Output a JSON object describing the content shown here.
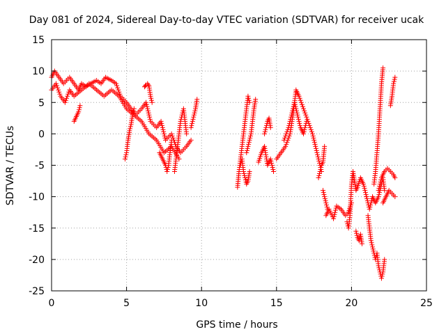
{
  "chart_data": {
    "type": "scatter",
    "title": "Day 081 of 2024, Sidereal Day-to-day VTEC variation (SDTVAR) for receiver ucak",
    "xlabel": "GPS time / hours",
    "ylabel": "SDTVAR / TECUs",
    "xlim": [
      0,
      25
    ],
    "ylim": [
      -25,
      15
    ],
    "x_ticks": [
      0,
      5,
      10,
      15,
      20,
      25
    ],
    "y_ticks": [
      -25,
      -20,
      -15,
      -10,
      -5,
      0,
      5,
      10,
      15
    ],
    "grid": true,
    "marker": "+",
    "series_color": "#ff0000",
    "series": [
      {
        "name": "SDTVAR",
        "segments": [
          {
            "x": [
              0.0,
              0.2,
              0.5,
              0.8,
              1.0,
              1.2,
              1.5,
              1.8,
              2.0,
              2.3,
              2.6,
              3.0,
              3.3,
              3.6,
              4.0,
              4.3,
              4.6,
              5.0,
              5.3,
              5.6,
              6.0,
              6.3,
              6.6,
              7.0,
              7.3,
              7.6,
              8.0,
              8.3,
              8.6,
              9.0,
              9.3
            ],
            "y": [
              9,
              10,
              9,
              8,
              8.5,
              9,
              8,
              7,
              8,
              7.5,
              8,
              8.5,
              8,
              9,
              8.5,
              8,
              6,
              5,
              4,
              3,
              4,
              5,
              2,
              1,
              2,
              -1,
              0,
              -2,
              -3,
              -2,
              -1
            ]
          },
          {
            "x": [
              0.0,
              0.3,
              0.6,
              0.9,
              1.2,
              1.5,
              2.0,
              2.5,
              3.0,
              3.5,
              4.0,
              4.5,
              5.0,
              5.5,
              6.0,
              6.5,
              7.0,
              7.5,
              8.0,
              8.5
            ],
            "y": [
              7,
              8,
              6,
              5,
              7,
              6,
              7,
              8,
              7,
              6,
              7,
              6,
              4,
              3,
              2,
              0,
              -1,
              -3,
              -2,
              -4
            ]
          },
          {
            "x": [
              1.5,
              1.6,
              1.7,
              1.8,
              1.9
            ],
            "y": [
              2,
              2.5,
              3,
              3.5,
              4.5
            ]
          },
          {
            "x": [
              4.9,
              5.0,
              5.1,
              5.2,
              5.3,
              5.4,
              5.5
            ],
            "y": [
              -4,
              -3,
              -1,
              0.5,
              1.5,
              3,
              4
            ]
          },
          {
            "x": [
              6.2,
              6.3,
              6.4,
              6.5,
              6.6,
              6.7
            ],
            "y": [
              7.5,
              7.8,
              8,
              7.6,
              6,
              5
            ]
          },
          {
            "x": [
              7.2,
              7.4,
              7.6,
              7.7,
              7.8,
              7.9,
              8.0
            ],
            "y": [
              -3,
              -4,
              -5,
              -6,
              -5,
              -3,
              -1
            ]
          },
          {
            "x": [
              8.2,
              8.3,
              8.4,
              8.5,
              8.6,
              8.7,
              8.8,
              8.9,
              9.0
            ],
            "y": [
              -6,
              -4,
              -2,
              0,
              2,
              3,
              4,
              2,
              0
            ]
          },
          {
            "x": [
              9.3,
              9.4,
              9.5,
              9.6,
              9.7
            ],
            "y": [
              1,
              2,
              3,
              4,
              5.5
            ]
          },
          {
            "x": [
              12.4,
              12.5,
              12.6,
              12.7,
              12.8,
              12.9,
              13.0,
              13.1,
              13.2
            ],
            "y": [
              -8.5,
              -6,
              -4,
              -2,
              0,
              2,
              4,
              6,
              5
            ]
          },
          {
            "x": [
              12.6,
              12.7,
              12.8,
              12.9,
              13.0,
              13.1,
              13.2
            ],
            "y": [
              -5,
              -4,
              -6,
              -7,
              -8,
              -7.5,
              -6
            ]
          },
          {
            "x": [
              13.0,
              13.1,
              13.2,
              13.3,
              13.4,
              13.5,
              13.6
            ],
            "y": [
              -3,
              -2,
              -1,
              0,
              2,
              4,
              5.5
            ]
          },
          {
            "x": [
              13.8,
              14.0,
              14.2,
              14.4,
              14.6,
              14.8
            ],
            "y": [
              -4.5,
              -3,
              -2,
              -5,
              -4,
              -6
            ]
          },
          {
            "x": [
              14.2,
              14.3,
              14.4,
              14.5,
              14.6
            ],
            "y": [
              0,
              1,
              2,
              2.5,
              1
            ]
          },
          {
            "x": [
              15.0,
              15.3,
              15.6,
              15.9,
              16.1,
              16.3,
              16.5,
              16.8,
              17.1,
              17.4,
              17.7,
              18.0
            ],
            "y": [
              -4,
              -3,
              -2,
              0,
              3,
              7,
              6,
              4,
              2,
              0,
              -3,
              -6
            ]
          },
          {
            "x": [
              15.5,
              15.8,
              16.0,
              16.2,
              16.4,
              16.6,
              16.8,
              17.0
            ],
            "y": [
              -1,
              1,
              3,
              5,
              3,
              1,
              0,
              2
            ]
          },
          {
            "x": [
              17.8,
              17.9,
              18.0,
              18.1,
              18.2
            ],
            "y": [
              -7,
              -6,
              -5,
              -4.5,
              -2
            ]
          },
          {
            "x": [
              18.3,
              18.5,
              18.8,
              19.0,
              19.3,
              19.6,
              19.8,
              20.0
            ],
            "y": [
              -13,
              -12,
              -13.5,
              -11.5,
              -12,
              -13,
              -12.5,
              -11
            ]
          },
          {
            "x": [
              18.1,
              18.2,
              18.3,
              18.4
            ],
            "y": [
              -9,
              -10,
              -11,
              -12
            ]
          },
          {
            "x": [
              19.7,
              19.8,
              19.9,
              20.0,
              20.1,
              20.2,
              20.3,
              20.4,
              20.6,
              20.8,
              21.0
            ],
            "y": [
              -14,
              -15,
              -13,
              -8,
              -6,
              -7.5,
              -9,
              -8.5,
              -7,
              -8,
              -10
            ]
          },
          {
            "x": [
              20.3,
              20.4,
              20.5,
              20.6,
              20.7
            ],
            "y": [
              -15.5,
              -16.5,
              -17,
              -16,
              -17.5
            ]
          },
          {
            "x": [
              21.0,
              21.2,
              21.4,
              21.6,
              21.8,
              22.0,
              22.1,
              22.2
            ],
            "y": [
              -10,
              -12,
              -10,
              -11,
              -10,
              -8,
              -7,
              -9
            ]
          },
          {
            "x": [
              21.1,
              21.2,
              21.3,
              21.4,
              21.5,
              21.6,
              21.7,
              21.8,
              21.9,
              22.0,
              22.1,
              22.2
            ],
            "y": [
              -13,
              -15,
              -17,
              -18,
              -19,
              -20,
              -19,
              -21,
              -22,
              -23,
              -22,
              -20
            ]
          },
          {
            "x": [
              21.5,
              21.6,
              21.7,
              21.8,
              21.9,
              22.0,
              22.1
            ],
            "y": [
              -8,
              -6,
              -3,
              0,
              4,
              8,
              10.5
            ]
          },
          {
            "x": [
              21.8,
              22.0,
              22.2,
              22.4,
              22.6,
              22.8,
              22.9
            ],
            "y": [
              -9,
              -7,
              -6,
              -5.5,
              -6,
              -6.5,
              -7
            ]
          },
          {
            "x": [
              22.1,
              22.3,
              22.5,
              22.7,
              22.9
            ],
            "y": [
              -11,
              -10,
              -9,
              -9.5,
              -10
            ]
          },
          {
            "x": [
              22.6,
              22.7,
              22.8,
              22.9
            ],
            "y": [
              4.5,
              6,
              8,
              9
            ]
          }
        ]
      }
    ]
  }
}
